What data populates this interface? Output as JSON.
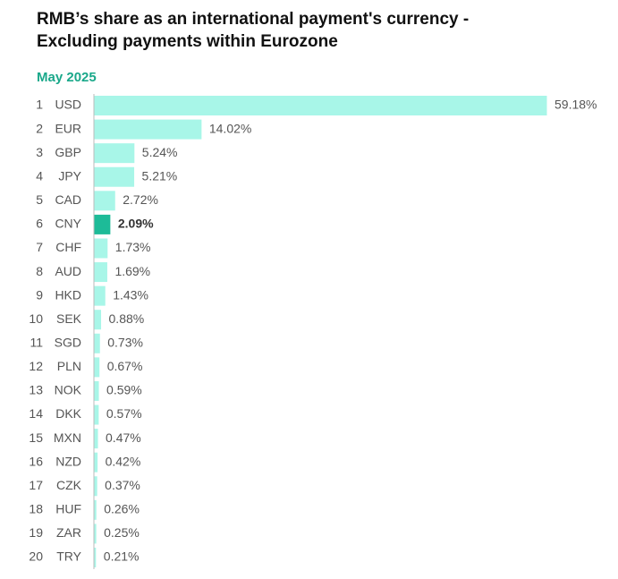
{
  "chart_data": {
    "type": "bar",
    "orientation": "horizontal",
    "title": "RMB’s share as an international payment's currency -",
    "title_line2": "Excluding payments within Eurozone",
    "subtitle": "May 2025",
    "ranks": [
      1,
      2,
      3,
      4,
      5,
      6,
      7,
      8,
      9,
      10,
      11,
      12,
      13,
      14,
      15,
      16,
      17,
      18,
      19,
      20
    ],
    "categories": [
      "USD",
      "EUR",
      "GBP",
      "JPY",
      "CAD",
      "CNY",
      "CHF",
      "AUD",
      "HKD",
      "SEK",
      "SGD",
      "PLN",
      "NOK",
      "DKK",
      "MXN",
      "NZD",
      "CZK",
      "HUF",
      "ZAR",
      "TRY"
    ],
    "values": [
      59.18,
      14.02,
      5.24,
      5.21,
      2.72,
      2.09,
      1.73,
      1.69,
      1.43,
      0.88,
      0.73,
      0.67,
      0.59,
      0.57,
      0.47,
      0.42,
      0.37,
      0.26,
      0.25,
      0.21
    ],
    "value_labels": [
      "59.18%",
      "14.02%",
      "5.24%",
      "5.21%",
      "2.72%",
      "2.09%",
      "1.73%",
      "1.69%",
      "1.43%",
      "0.88%",
      "0.73%",
      "0.67%",
      "0.59%",
      "0.57%",
      "0.47%",
      "0.42%",
      "0.37%",
      "0.26%",
      "0.25%",
      "0.21%"
    ],
    "color": "#a8f6e8",
    "highlight_category": "CNY",
    "highlight_color": "#1dbb98"
  }
}
